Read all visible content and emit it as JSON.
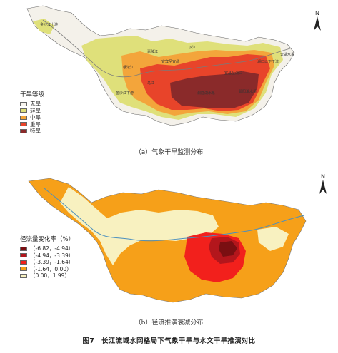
{
  "map_a": {
    "caption": "（a）气象干旱监测分布",
    "north_label": "N",
    "legend_title": "干旱等级",
    "legend": [
      {
        "label": "无旱",
        "color": "#f7f4ee"
      },
      {
        "label": "轻旱",
        "color": "#dfe07a"
      },
      {
        "label": "中旱",
        "color": "#f3a53b"
      },
      {
        "label": "重旱",
        "color": "#e8442a"
      },
      {
        "label": "特旱",
        "color": "#8a2a2a"
      }
    ],
    "region_labels": [
      "金沙江上游",
      "嘉陵江",
      "岷沱江",
      "汉江",
      "宜宾至宜昌",
      "宜昌至湖口",
      "太湖水系",
      "湖口以下干流",
      "乌江",
      "金沙江下游",
      "洞庭湖水系",
      "鄱阳湖水系"
    ]
  },
  "map_b": {
    "caption": "（b）径流推演衰减分布",
    "north_label": "N",
    "legend_title": "径流量变化率（%）",
    "legend": [
      {
        "label": "（-6.82，-4.94）",
        "color": "#7a0f12"
      },
      {
        "label": "（-4.94，-3.39）",
        "color": "#b3161c"
      },
      {
        "label": "（-3.39，-1.64）",
        "color": "#f2201c"
      },
      {
        "label": "（-1.64，0.00）",
        "color": "#f6a019"
      },
      {
        "label": "（0.00，1.99）",
        "color": "#f8f1c0"
      }
    ]
  },
  "figure_caption": "图7　长江流域水网格局下气象干旱与水文干旱推演对比"
}
